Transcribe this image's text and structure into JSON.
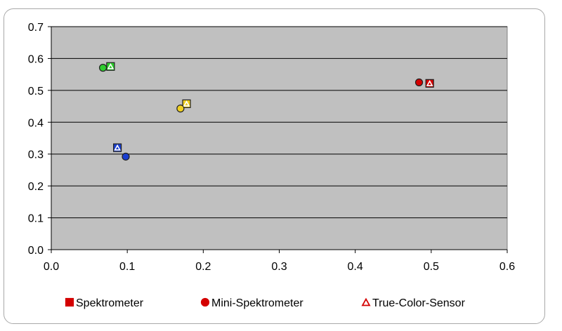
{
  "chart_data": {
    "type": "scatter",
    "title": "",
    "xlabel": "",
    "ylabel": "",
    "xlim": [
      0,
      0.6
    ],
    "ylim": [
      0,
      0.7
    ],
    "xticks": [
      0.0,
      0.1,
      0.2,
      0.3,
      0.4,
      0.5,
      0.6
    ],
    "yticks": [
      0.0,
      0.1,
      0.2,
      0.3,
      0.4,
      0.5,
      0.6,
      0.7
    ],
    "xtick_labels": [
      "0.0",
      "0.1",
      "0.2",
      "0.3",
      "0.4",
      "0.5",
      "0.6"
    ],
    "ytick_labels": [
      "0.0",
      "0.1",
      "0.2",
      "0.3",
      "0.4",
      "0.5",
      "0.6",
      "0.7"
    ],
    "grid": "horizontal",
    "plot_background": "#c0c0c0",
    "legend_position": "bottom",
    "series": [
      {
        "name": "Spektrometer",
        "marker": "square",
        "points": [
          {
            "x": 0.498,
            "y": 0.522,
            "color": "#d40000"
          },
          {
            "x": 0.078,
            "y": 0.575,
            "color": "#2ecc2e"
          },
          {
            "x": 0.178,
            "y": 0.458,
            "color": "#f0d020"
          },
          {
            "x": 0.087,
            "y": 0.32,
            "color": "#1a3fd0"
          }
        ]
      },
      {
        "name": "Mini-Spektrometer",
        "marker": "circle",
        "points": [
          {
            "x": 0.484,
            "y": 0.525,
            "color": "#d40000"
          },
          {
            "x": 0.068,
            "y": 0.571,
            "color": "#2ecc2e"
          },
          {
            "x": 0.17,
            "y": 0.443,
            "color": "#f0d020"
          },
          {
            "x": 0.098,
            "y": 0.292,
            "color": "#1a3fd0"
          }
        ]
      },
      {
        "name": "True-Color-Sensor",
        "marker": "triangle",
        "points": [
          {
            "x": 0.498,
            "y": 0.522,
            "color": "#ffffff"
          },
          {
            "x": 0.078,
            "y": 0.575,
            "color": "#ffffff"
          },
          {
            "x": 0.178,
            "y": 0.458,
            "color": "#ffffff"
          },
          {
            "x": 0.087,
            "y": 0.32,
            "color": "#ffffff"
          }
        ]
      }
    ],
    "legend": [
      {
        "label": "Spektrometer",
        "marker": "square",
        "color": "#d40000"
      },
      {
        "label": "Mini-Spektrometer",
        "marker": "circle",
        "color": "#d40000"
      },
      {
        "label": "True-Color-Sensor",
        "marker": "triangle",
        "color": "#d40000"
      }
    ]
  }
}
